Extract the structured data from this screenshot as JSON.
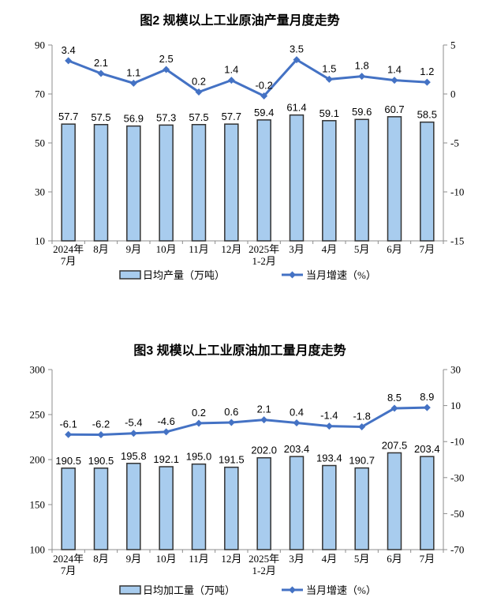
{
  "style": {
    "bar_fill": "#A8CCEE",
    "bar_border": "#333333",
    "line_color": "#4472C4",
    "axis_color": "#8C8C8C",
    "background": "#FFFFFF"
  },
  "chart_data": [
    {
      "type": "bar+line",
      "title": "图2 规模以上工业原油产量月度走势",
      "categories": [
        [
          "2024年",
          "7月"
        ],
        [
          "8月"
        ],
        [
          "9月"
        ],
        [
          "10月"
        ],
        [
          "11月"
        ],
        [
          "12月"
        ],
        [
          "2025年",
          "1-2月"
        ],
        [
          "3月"
        ],
        [
          "4月"
        ],
        [
          "5月"
        ],
        [
          "6月"
        ],
        [
          "7月"
        ]
      ],
      "series": [
        {
          "name": "日均产量（万吨）",
          "type": "bar",
          "values": [
            57.7,
            57.5,
            56.9,
            57.3,
            57.5,
            57.7,
            59.4,
            61.4,
            59.1,
            59.6,
            60.7,
            58.5
          ]
        },
        {
          "name": "当月增速（%）",
          "type": "line",
          "values": [
            3.4,
            2.1,
            1.1,
            2.5,
            0.2,
            1.4,
            -0.2,
            3.5,
            1.5,
            1.8,
            1.4,
            1.2
          ]
        }
      ],
      "left_axis": {
        "min": 10,
        "max": 90,
        "ticks": [
          90,
          70,
          50,
          30,
          10
        ]
      },
      "right_axis": {
        "min": -15,
        "max": 5,
        "ticks": [
          5,
          0,
          -5,
          -10,
          -15
        ]
      },
      "legend_position": "bottom",
      "grid": false
    },
    {
      "type": "bar+line",
      "title": "图3 规模以上工业原油加工量月度走势",
      "categories": [
        [
          "2024年",
          "7月"
        ],
        [
          "8月"
        ],
        [
          "9月"
        ],
        [
          "10月"
        ],
        [
          "11月"
        ],
        [
          "12月"
        ],
        [
          "2025年",
          "1-2月"
        ],
        [
          "3月"
        ],
        [
          "4月"
        ],
        [
          "5月"
        ],
        [
          "6月"
        ],
        [
          "7月"
        ]
      ],
      "series": [
        {
          "name": "日均加工量（万吨）",
          "type": "bar",
          "values": [
            190.5,
            190.5,
            195.8,
            192.1,
            195.0,
            191.5,
            202.0,
            203.4,
            193.4,
            190.7,
            207.5,
            203.4
          ]
        },
        {
          "name": "当月增速（%）",
          "type": "line",
          "values": [
            -6.1,
            -6.2,
            -5.4,
            -4.6,
            0.2,
            0.6,
            2.1,
            0.4,
            -1.4,
            -1.8,
            8.5,
            8.9
          ]
        }
      ],
      "left_axis": {
        "min": 100,
        "max": 300,
        "ticks": [
          300,
          250,
          200,
          150,
          100
        ]
      },
      "right_axis": {
        "min": -70,
        "max": 30,
        "ticks": [
          30,
          10,
          -10,
          -30,
          -50,
          -70
        ]
      },
      "legend_position": "bottom",
      "grid": false
    }
  ]
}
